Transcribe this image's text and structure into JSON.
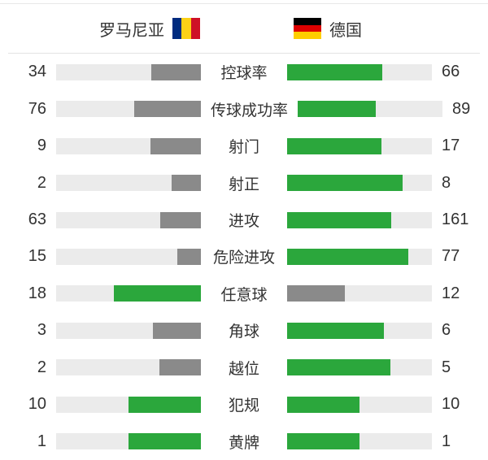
{
  "header": {
    "home_name": "罗马尼亚",
    "away_name": "德国",
    "home_flag_icon": "romania-flag",
    "away_flag_icon": "germany-flag"
  },
  "colors": {
    "leader_green": "#2BA73C",
    "trailer_gray": "#8A8A8A",
    "bar_track": "#EBEBEB",
    "text": "#333333",
    "divider": "#E3E3E3",
    "flag_romania_stripes": [
      "#002B7F",
      "#FCD116",
      "#CE1126"
    ],
    "flag_germany_stripes": [
      "#000000",
      "#DD0000",
      "#FFCE00"
    ]
  },
  "chart_data": {
    "type": "bar",
    "orientation": "horizontal-mirrored",
    "title": "",
    "legend_position": "top",
    "categories": [
      "控球率",
      "传球成功率",
      "射门",
      "射正",
      "进攻",
      "危险进攻",
      "任意球",
      "角球",
      "越位",
      "犯规",
      "黄牌"
    ],
    "series": [
      {
        "name": "罗马尼亚",
        "values": [
          34,
          76,
          9,
          2,
          63,
          15,
          18,
          3,
          2,
          10,
          1
        ]
      },
      {
        "name": "德国",
        "values": [
          66,
          89,
          17,
          8,
          161,
          77,
          12,
          6,
          5,
          10,
          1
        ]
      }
    ],
    "bar_rule": "fill width = value / (home + away); higher value bar is green, lower is gray, tie = both green; bars grow outward from center labels"
  }
}
